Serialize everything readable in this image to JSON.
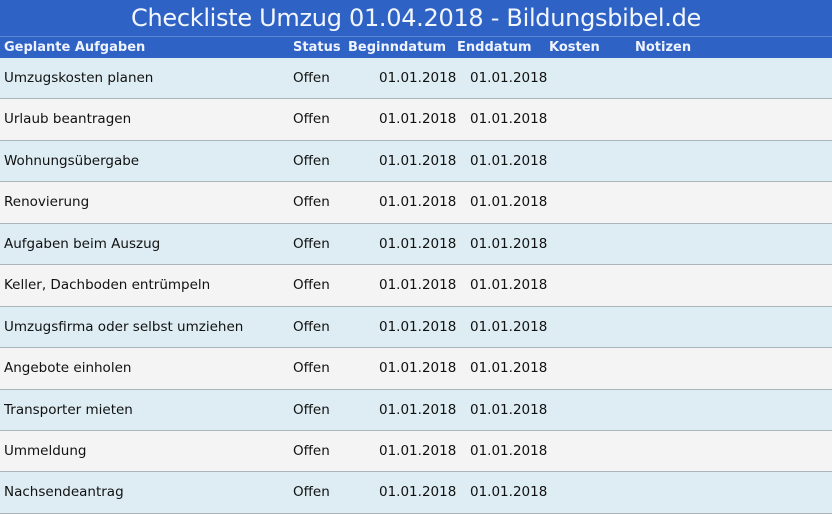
{
  "title": "Checkliste Umzug 01.04.2018 - Bildungsbibel.de",
  "columns": [
    "Geplante Aufgaben",
    "Status",
    "Beginndatum",
    "Enddatum",
    "Kosten",
    "Notizen"
  ],
  "rows": [
    {
      "task": "Umzugskosten planen",
      "status": "Offen",
      "begin": "01.01.2018",
      "end": "01.01.2018"
    },
    {
      "task": "Urlaub beantragen",
      "status": "Offen",
      "begin": "01.01.2018",
      "end": "01.01.2018"
    },
    {
      "task": "Wohnungsübergabe",
      "status": "Offen",
      "begin": "01.01.2018",
      "end": "01.01.2018"
    },
    {
      "task": "Renovierung",
      "status": "Offen",
      "begin": "01.01.2018",
      "end": "01.01.2018"
    },
    {
      "task": "Aufgaben beim Auszug",
      "status": "Offen",
      "begin": "01.01.2018",
      "end": "01.01.2018"
    },
    {
      "task": "Keller, Dachboden entrümpeln",
      "status": "Offen",
      "begin": "01.01.2018",
      "end": "01.01.2018"
    },
    {
      "task": "Umzugsfirma oder selbst umziehen",
      "status": "Offen",
      "begin": "01.01.2018",
      "end": "01.01.2018"
    },
    {
      "task": "Angebote einholen",
      "status": "Offen",
      "begin": "01.01.2018",
      "end": "01.01.2018"
    },
    {
      "task": "Transporter mieten",
      "status": "Offen",
      "begin": "01.01.2018",
      "end": "01.01.2018"
    },
    {
      "task": "Ummeldung",
      "status": "Offen",
      "begin": "01.01.2018",
      "end": "01.01.2018"
    },
    {
      "task": "Nachsendeantrag",
      "status": "Offen",
      "begin": "01.01.2018",
      "end": "01.01.2018"
    }
  ]
}
